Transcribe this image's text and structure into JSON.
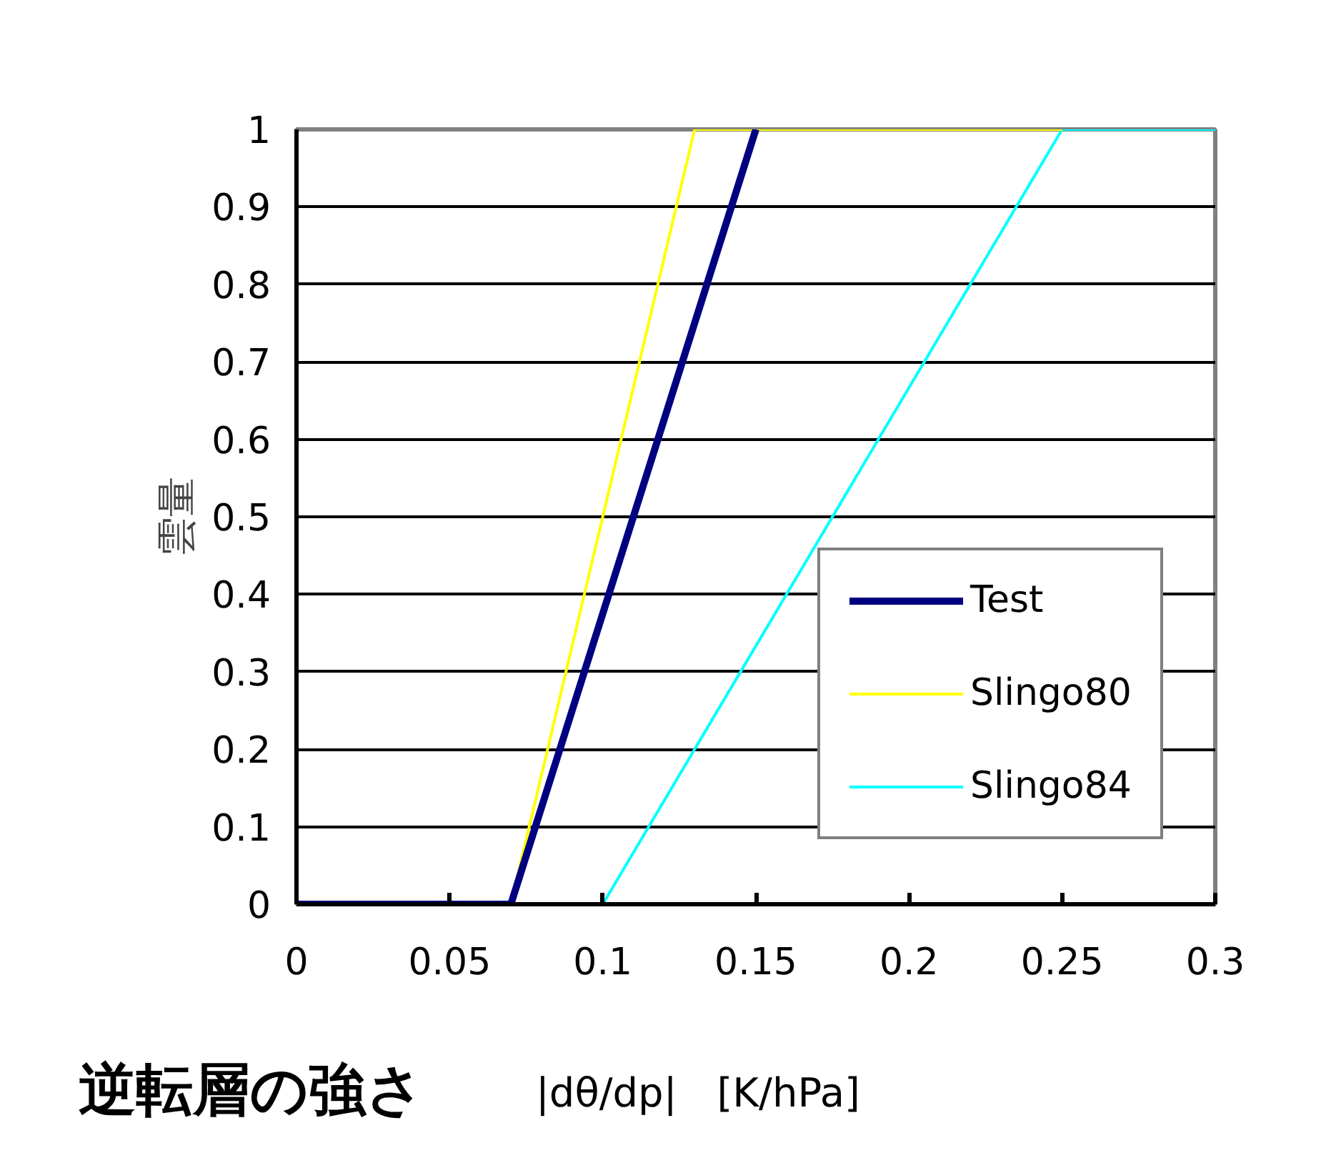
{
  "chart_data": {
    "type": "line",
    "xlabel": "逆転層の強さ",
    "ylabel": "雲量",
    "annotations": [
      "|dθ/dp|　[K/hPa]"
    ],
    "xlim": [
      0,
      0.3
    ],
    "xticks": [
      0,
      0.05,
      0.1,
      0.15,
      0.2,
      0.25,
      0.3
    ],
    "ylim": [
      0,
      1
    ],
    "yticks": [
      0,
      0.1,
      0.2,
      0.3,
      0.4,
      0.5,
      0.6,
      0.7,
      0.8,
      0.9,
      1
    ],
    "grid": "y",
    "legend": "right",
    "marker": "none",
    "line_style": "solid",
    "series": [
      {
        "name": "Slingo84",
        "color": "#00ffff",
        "x": [
          0.1,
          0.25,
          0.3
        ],
        "values": [
          0,
          1,
          1
        ]
      },
      {
        "name": "Slingo80",
        "color": "#ffff00",
        "x": [
          0.07,
          0.13,
          0.25
        ],
        "values": [
          0,
          1,
          1
        ]
      },
      {
        "name": "Test",
        "color": "#000080",
        "x": [
          0,
          0.07,
          0.15
        ],
        "values": [
          0,
          0,
          1
        ]
      }
    ]
  }
}
